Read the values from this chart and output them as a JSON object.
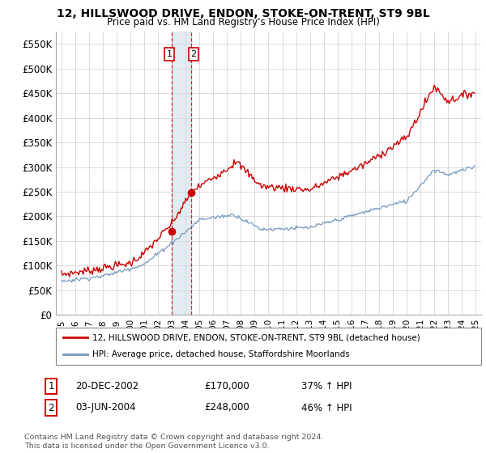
{
  "title": "12, HILLSWOOD DRIVE, ENDON, STOKE-ON-TRENT, ST9 9BL",
  "subtitle": "Price paid vs. HM Land Registry's House Price Index (HPI)",
  "sale1_label": "1",
  "sale1_date": "20-DEC-2002",
  "sale1_year": 2002.96,
  "sale1_price": 170000,
  "sale1_pct": "37% ↑ HPI",
  "sale2_label": "2",
  "sale2_date": "03-JUN-2004",
  "sale2_year": 2004.42,
  "sale2_price": 248000,
  "sale2_pct": "46% ↑ HPI",
  "legend_line1": "12, HILLSWOOD DRIVE, ENDON, STOKE-ON-TRENT, ST9 9BL (detached house)",
  "legend_line2": "HPI: Average price, detached house, Staffordshire Moorlands",
  "footer": "Contains HM Land Registry data © Crown copyright and database right 2024.\nThis data is licensed under the Open Government Licence v3.0.",
  "red_color": "#cc0000",
  "blue_color": "#7799bb",
  "shade_color": "#ccdde8",
  "grid_color": "#cccccc",
  "ylim": [
    0,
    575000
  ],
  "yticks": [
    0,
    50000,
    100000,
    150000,
    200000,
    250000,
    300000,
    350000,
    400000,
    450000,
    500000,
    550000
  ],
  "ytick_labels": [
    "£0",
    "£50K",
    "£100K",
    "£150K",
    "£200K",
    "£250K",
    "£300K",
    "£350K",
    "£400K",
    "£450K",
    "£500K",
    "£550K"
  ],
  "xmin": 1994.6,
  "xmax": 2025.4
}
